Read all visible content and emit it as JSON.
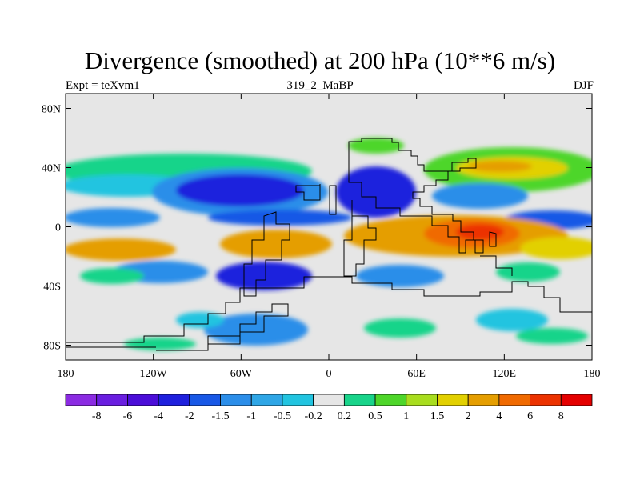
{
  "title": "Divergence (smoothed) at 200 hPa (10**6 m/s)",
  "subtitle_left": "Expt = teXvm1",
  "subtitle_center": "319_2_MaBP",
  "subtitle_right": "DJF",
  "y_ticks": [
    {
      "lat": 80,
      "label": "80N"
    },
    {
      "lat": 40,
      "label": "40N"
    },
    {
      "lat": 0,
      "label": "0"
    },
    {
      "lat": -40,
      "label": "40S"
    },
    {
      "lat": -80,
      "label": "80S"
    }
  ],
  "x_ticks": [
    {
      "lon": -180,
      "label": "180"
    },
    {
      "lon": -120,
      "label": "120W"
    },
    {
      "lon": -60,
      "label": "60W"
    },
    {
      "lon": 0,
      "label": "0"
    },
    {
      "lon": 60,
      "label": "60E"
    },
    {
      "lon": 120,
      "label": "120E"
    },
    {
      "lon": 180,
      "label": "180"
    }
  ],
  "colorbar": {
    "colors": [
      "#8b2be2",
      "#6a1ee0",
      "#4b0ed8",
      "#1f20dd",
      "#1858e6",
      "#2c8ee9",
      "#2fa6e6",
      "#22c4e0",
      "#e6e6e6",
      "#19d48a",
      "#4ed62a",
      "#a8dd1e",
      "#e2d000",
      "#e59e00",
      "#f06a00",
      "#ec3200",
      "#e40000"
    ],
    "labels": [
      "-8",
      "-6",
      "-4",
      "-2",
      "-1.5",
      "-1",
      "-0.5",
      "-0.2",
      "0.2",
      "0.5",
      "1",
      "1.5",
      "2",
      "4",
      "6",
      "8"
    ]
  },
  "chart_data": {
    "type": "heatmap",
    "title": "Divergence (smoothed) at 200 hPa (10**6 m/s)",
    "xlabel": "",
    "ylabel": "",
    "xlim": [
      -180,
      180
    ],
    "ylim": [
      -90,
      90
    ],
    "levels": [
      -8,
      -6,
      -4,
      -2,
      -1.5,
      -1,
      -0.5,
      -0.2,
      0.2,
      0.5,
      1,
      1.5,
      2,
      4,
      6,
      8
    ],
    "features": [
      {
        "lon": -150,
        "lat": 40,
        "value": 0.8
      },
      {
        "lon": -30,
        "lat": 45,
        "value": 0.6
      },
      {
        "lon": 140,
        "lat": 38,
        "value": 1.8
      },
      {
        "lon": -100,
        "lat": 28,
        "value": -2.5
      },
      {
        "lon": -160,
        "lat": 22,
        "value": -1.2
      },
      {
        "lon": 30,
        "lat": 28,
        "value": -2.3
      },
      {
        "lon": 130,
        "lat": 22,
        "value": -1.2
      },
      {
        "lon": 165,
        "lat": 5,
        "value": -2.0
      },
      {
        "lon": -120,
        "lat": 5,
        "value": -1.5
      },
      {
        "lon": 75,
        "lat": 2,
        "value": 3.0
      },
      {
        "lon": 95,
        "lat": -5,
        "value": 5.5
      },
      {
        "lon": -70,
        "lat": -8,
        "value": 3.0
      },
      {
        "lon": -160,
        "lat": -12,
        "value": 2.2
      },
      {
        "lon": 170,
        "lat": -12,
        "value": 1.5
      },
      {
        "lon": -60,
        "lat": -30,
        "value": -2.3
      },
      {
        "lon": -150,
        "lat": -28,
        "value": -0.8
      },
      {
        "lon": 45,
        "lat": -25,
        "value": -1.0
      },
      {
        "lon": 130,
        "lat": -45,
        "value": 0.8
      },
      {
        "lon": -60,
        "lat": -65,
        "value": -1.2
      },
      {
        "lon": 80,
        "lat": -60,
        "value": 0.3
      }
    ]
  }
}
